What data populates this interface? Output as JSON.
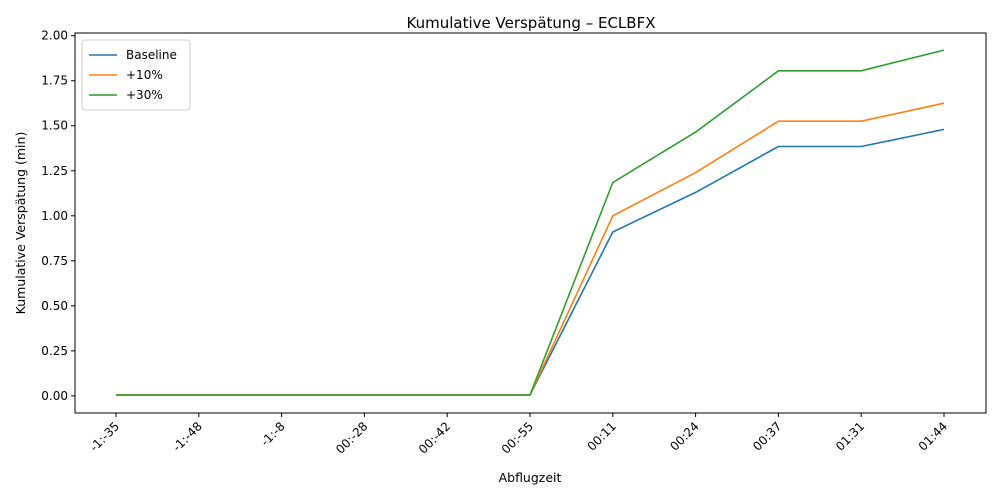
{
  "chart_data": {
    "type": "line",
    "title": "Kumulative Verspätung – ECLBFX",
    "xlabel": "Abflugzeit",
    "ylabel": "Kumulative Verspätung (min)",
    "categories": [
      "-1:-35",
      "-1:-48",
      "-1:-8",
      "00:-28",
      "00:-42",
      "00:-55",
      "00:11",
      "00:24",
      "00:37",
      "01:31",
      "01:44"
    ],
    "ylim": [
      -0.095,
      2.015
    ],
    "yticks": [
      "0.00",
      "0.25",
      "0.50",
      "0.75",
      "1.00",
      "1.25",
      "1.50",
      "1.75",
      "2.00"
    ],
    "grid": false,
    "legend_position": "top-left",
    "series": [
      {
        "name": "Baseline",
        "color": "#1f77b4",
        "values": [
          0.005,
          0.005,
          0.005,
          0.005,
          0.005,
          0.005,
          0.91,
          1.13,
          1.385,
          1.385,
          1.48
        ]
      },
      {
        "name": "+10%",
        "color": "#ff7f0e",
        "values": [
          0.005,
          0.005,
          0.005,
          0.005,
          0.005,
          0.005,
          1.0,
          1.24,
          1.525,
          1.525,
          1.625
        ]
      },
      {
        "name": "+30%",
        "color": "#2ca02c",
        "values": [
          0.005,
          0.005,
          0.005,
          0.005,
          0.005,
          0.005,
          1.185,
          1.465,
          1.805,
          1.805,
          1.92
        ]
      }
    ]
  }
}
